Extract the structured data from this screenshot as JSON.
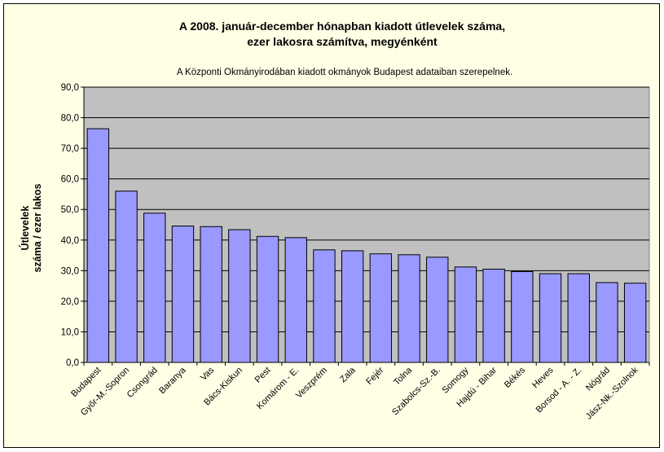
{
  "chart_data": {
    "type": "bar",
    "title": [
      "A 2008. január-december hónapban kiadott útlevelek száma,",
      "ezer lakosra számítva, megyénként"
    ],
    "subtitle": "A Központi Okmányirodában kiadott okmányok Budapest adataiban szerepelnek.",
    "ylabel": [
      "Útlevelek",
      "száma / ezer lakos"
    ],
    "xlabel": "",
    "ylim": [
      0,
      90
    ],
    "yticks": [
      "0,0",
      "10,0",
      "20,0",
      "30,0",
      "40,0",
      "50,0",
      "60,0",
      "70,0",
      "80,0",
      "90,0"
    ],
    "grid": true,
    "legend": "none",
    "categories": [
      "Budapest",
      "Győr-M.-Sopron",
      "Csongrád",
      "Baranya",
      "Vas",
      "Bács-Kiskun",
      "Pest",
      "Komárom - E.",
      "Veszprém",
      "Zala",
      "Fejér",
      "Tolna",
      "Szabolcs-Sz.-B.",
      "Somogy",
      "Hajdú - Bihar",
      "Békés",
      "Heves",
      "Borsod - A. - Z.",
      "Nógrád",
      "Jász-Nk.-Szolnok"
    ],
    "values": [
      76.4,
      56.0,
      48.8,
      44.6,
      44.4,
      43.4,
      41.2,
      40.8,
      36.8,
      36.5,
      35.5,
      35.2,
      34.4,
      31.2,
      30.5,
      29.7,
      29.0,
      29.0,
      26.1,
      25.9
    ]
  },
  "colors": {
    "bar_fill": "#9999ff",
    "plot_background": "#c0c0c0",
    "chart_background": "#ffffe6",
    "gridline": "#000000"
  }
}
